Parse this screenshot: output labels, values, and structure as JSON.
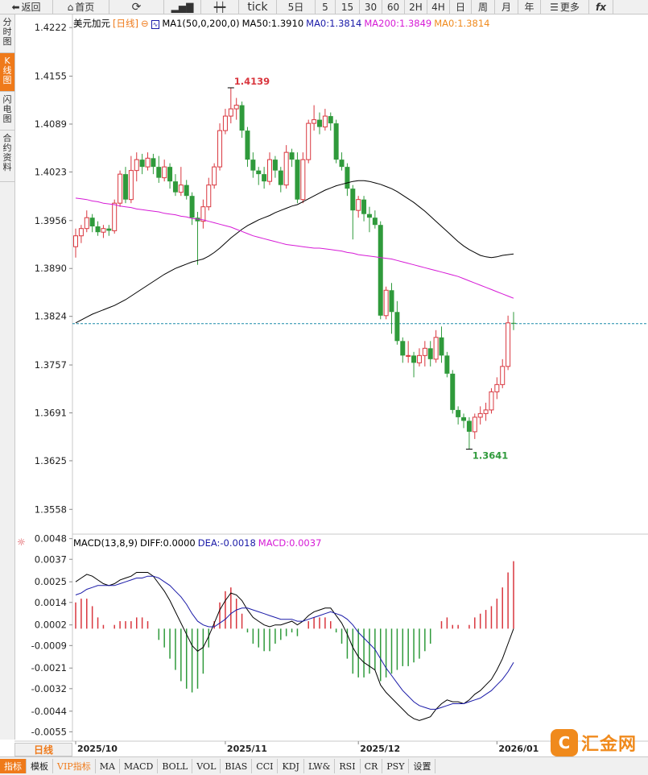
{
  "toolbar": {
    "back_label": "返回",
    "home_label": "首页",
    "tick_label": "tick",
    "periods": [
      "5日",
      "5",
      "15",
      "30",
      "60",
      "2H",
      "4H",
      "日",
      "周",
      "月",
      "年"
    ],
    "more_label": "更多",
    "fx_label": "fx"
  },
  "sidebar": {
    "tabs": [
      {
        "label": "分时图",
        "active": false
      },
      {
        "label": "K线图",
        "active": true
      },
      {
        "label": "闪电图",
        "active": false
      },
      {
        "label": "合约资料",
        "active": false
      }
    ]
  },
  "main_legend": {
    "symbol": "美元加元",
    "period_tag": "[日线]",
    "ma_setting": "MA1(50,0,200,0)",
    "ma50": "MA50:1.3910",
    "ma0a": "MA0:1.3814",
    "ma200": "MA200:1.3849",
    "ma0b": "MA0:1.3814"
  },
  "macd_legend": {
    "title": "MACD(13,8,9)",
    "diff": "DIFF:0.0000",
    "dea": "DEA:-0.0018",
    "macd": "MACD:0.0037"
  },
  "colors": {
    "up": "#d9363e",
    "down": "#2f9a3b",
    "ma50": "#000000",
    "ma200": "#d61ad6",
    "dea": "#1a1aa8",
    "macd_label": "#d61ad6",
    "ma0": "#f08a1c",
    "accent": "#ef7a1a",
    "current_line": "#1a8aa8"
  },
  "price_axis_labels": [
    "1.4222",
    "1.4155",
    "1.4089",
    "1.4023",
    "1.3956",
    "1.3890",
    "1.3824",
    "1.3757",
    "1.3691",
    "1.3625",
    "1.3558"
  ],
  "macd_axis_labels": [
    "0.0048",
    "0.0037",
    "0.0025",
    "0.0014",
    "0.0002",
    "-0.0009",
    "-0.0021",
    "-0.0032",
    "-0.0044",
    "-0.0055"
  ],
  "date_labels": [
    "2025/10",
    "2025/11",
    "2025/12",
    "2026/01"
  ],
  "annotations": {
    "high": "1.4139",
    "low": "1.3641"
  },
  "period_badge": "日线",
  "bottom_tabs": [
    "指标",
    "模板",
    "VIP指标",
    "MA",
    "MACD",
    "BOLL",
    "VOL",
    "BIAS",
    "CCI",
    "KDJ",
    "LW&",
    "RSI",
    "CR",
    "PSY",
    "设置"
  ],
  "watermark": {
    "logo_char": "C",
    "text": "汇金网"
  },
  "chart_data": {
    "type": "candlestick",
    "price_range": [
      1.3525,
      1.424
    ],
    "macd_range": [
      -0.006,
      0.005
    ],
    "current_price": 1.3814,
    "high_marker": 1.4139,
    "low_marker": 1.3641,
    "candles": [
      [
        1.392,
        1.3935,
        1.3905,
        1.3945
      ],
      [
        1.3935,
        1.3945,
        1.3925,
        1.395
      ],
      [
        1.3945,
        1.396,
        1.394,
        1.397
      ],
      [
        1.396,
        1.3948,
        1.394,
        1.3965
      ],
      [
        1.3948,
        1.394,
        1.3935,
        1.3955
      ],
      [
        1.394,
        1.3945,
        1.3932,
        1.395
      ],
      [
        1.3945,
        1.3942,
        1.3935,
        1.395
      ],
      [
        1.3942,
        1.398,
        1.3938,
        1.3985
      ],
      [
        1.398,
        1.402,
        1.3975,
        1.4025
      ],
      [
        1.402,
        1.3985,
        1.398,
        1.403
      ],
      [
        1.3985,
        1.4025,
        1.398,
        1.4045
      ],
      [
        1.4025,
        1.404,
        1.401,
        1.405
      ],
      [
        1.404,
        1.403,
        1.402,
        1.4048
      ],
      [
        1.403,
        1.4042,
        1.4025,
        1.405
      ],
      [
        1.4042,
        1.403,
        1.402,
        1.4048
      ],
      [
        1.403,
        1.4015,
        1.4008,
        1.4045
      ],
      [
        1.4015,
        1.403,
        1.401,
        1.404
      ],
      [
        1.403,
        1.401,
        1.4,
        1.4035
      ],
      [
        1.401,
        1.3995,
        1.399,
        1.402
      ],
      [
        1.3995,
        1.4005,
        1.399,
        1.403
      ],
      [
        1.4005,
        1.399,
        1.3985,
        1.4012
      ],
      [
        1.399,
        1.396,
        1.395,
        1.3995
      ],
      [
        1.396,
        1.3955,
        1.3895,
        1.3968
      ],
      [
        1.3955,
        1.3975,
        1.3945,
        1.3985
      ],
      [
        1.3975,
        1.4005,
        1.397,
        1.4015
      ],
      [
        1.4005,
        1.403,
        1.4,
        1.4035
      ],
      [
        1.403,
        1.408,
        1.4025,
        1.409
      ],
      [
        1.408,
        1.41,
        1.4075,
        1.411
      ],
      [
        1.41,
        1.411,
        1.409,
        1.4139
      ],
      [
        1.411,
        1.4115,
        1.4095,
        1.4125
      ],
      [
        1.4115,
        1.408,
        1.407,
        1.412
      ],
      [
        1.408,
        1.404,
        1.403,
        1.4085
      ],
      [
        1.404,
        1.4025,
        1.4015,
        1.405
      ],
      [
        1.4025,
        1.402,
        1.4005,
        1.403
      ],
      [
        1.402,
        1.401,
        1.4,
        1.403
      ],
      [
        1.401,
        1.404,
        1.4005,
        1.405
      ],
      [
        1.404,
        1.4025,
        1.4015,
        1.4045
      ],
      [
        1.4025,
        1.4005,
        1.3995,
        1.403
      ],
      [
        1.4005,
        1.405,
        1.4,
        1.406
      ],
      [
        1.405,
        1.404,
        1.403,
        1.4055
      ],
      [
        1.404,
        1.3985,
        1.398,
        1.405
      ],
      [
        1.3985,
        1.404,
        1.398,
        1.405
      ],
      [
        1.404,
        1.409,
        1.4035,
        1.4095
      ],
      [
        1.409,
        1.4095,
        1.408,
        1.4115
      ],
      [
        1.4095,
        1.4085,
        1.4075,
        1.4105
      ],
      [
        1.4085,
        1.41,
        1.408,
        1.411
      ],
      [
        1.41,
        1.409,
        1.408,
        1.4105
      ],
      [
        1.409,
        1.404,
        1.4035,
        1.4095
      ],
      [
        1.404,
        1.403,
        1.4025,
        1.405
      ],
      [
        1.403,
        1.4,
        1.399,
        1.4035
      ],
      [
        1.4,
        1.397,
        1.393,
        1.4005
      ],
      [
        1.397,
        1.3985,
        1.396,
        1.399
      ],
      [
        1.3985,
        1.3965,
        1.3955,
        1.399
      ],
      [
        1.3965,
        1.396,
        1.394,
        1.3975
      ],
      [
        1.396,
        1.395,
        1.3945,
        1.397
      ],
      [
        1.395,
        1.3825,
        1.382,
        1.3955
      ],
      [
        1.3825,
        1.386,
        1.382,
        1.3865
      ],
      [
        1.386,
        1.383,
        1.38,
        1.387
      ],
      [
        1.383,
        1.379,
        1.3785,
        1.3845
      ],
      [
        1.379,
        1.377,
        1.376,
        1.3795
      ],
      [
        1.377,
        1.377,
        1.376,
        1.379
      ],
      [
        1.377,
        1.376,
        1.374,
        1.3775
      ],
      [
        1.376,
        1.377,
        1.3755,
        1.378
      ],
      [
        1.377,
        1.378,
        1.3755,
        1.379
      ],
      [
        1.378,
        1.3765,
        1.3755,
        1.379
      ],
      [
        1.3765,
        1.3795,
        1.376,
        1.3805
      ],
      [
        1.3795,
        1.377,
        1.376,
        1.381
      ],
      [
        1.377,
        1.3745,
        1.374,
        1.3775
      ],
      [
        1.3745,
        1.3695,
        1.369,
        1.375
      ],
      [
        1.3695,
        1.3685,
        1.3675,
        1.37
      ],
      [
        1.3685,
        1.368,
        1.367,
        1.369
      ],
      [
        1.368,
        1.3665,
        1.3641,
        1.3685
      ],
      [
        1.3665,
        1.3685,
        1.3655,
        1.369
      ],
      [
        1.3685,
        1.369,
        1.3675,
        1.37
      ],
      [
        1.369,
        1.3695,
        1.368,
        1.3705
      ],
      [
        1.3695,
        1.372,
        1.369,
        1.3725
      ],
      [
        1.372,
        1.373,
        1.371,
        1.374
      ],
      [
        1.373,
        1.3755,
        1.3725,
        1.3765
      ],
      [
        1.3755,
        1.3815,
        1.375,
        1.3825
      ],
      [
        1.3815,
        1.3814,
        1.3805,
        1.383
      ]
    ],
    "ma50": [
      1.3815,
      1.3819,
      1.3823,
      1.3827,
      1.383,
      1.3833,
      1.3836,
      1.3839,
      1.3843,
      1.3847,
      1.3852,
      1.3857,
      1.3862,
      1.3867,
      1.3872,
      1.3877,
      1.3882,
      1.3886,
      1.389,
      1.3893,
      1.3896,
      1.3899,
      1.3901,
      1.3903,
      1.3907,
      1.3912,
      1.3918,
      1.3925,
      1.3932,
      1.3938,
      1.3944,
      1.3949,
      1.3953,
      1.3957,
      1.396,
      1.3963,
      1.3967,
      1.397,
      1.3973,
      1.3976,
      1.3978,
      1.3982,
      1.3986,
      1.399,
      1.3994,
      1.3998,
      1.4001,
      1.4004,
      1.4006,
      1.4008,
      1.401,
      1.4011,
      1.4011,
      1.401,
      1.4008,
      1.4006,
      1.4003,
      1.4,
      1.3996,
      1.3991,
      1.3986,
      1.3981,
      1.3975,
      1.3969,
      1.3962,
      1.3955,
      1.3948,
      1.3941,
      1.3934,
      1.3927,
      1.3921,
      1.3916,
      1.3912,
      1.3908,
      1.3906,
      1.3905,
      1.3906,
      1.3908,
      1.3909,
      1.391
    ],
    "ma200": [
      1.3987,
      1.3986,
      1.3985,
      1.3983,
      1.3982,
      1.398,
      1.3979,
      1.3978,
      1.3976,
      1.3975,
      1.3974,
      1.3972,
      1.3971,
      1.397,
      1.3969,
      1.3968,
      1.3966,
      1.3965,
      1.3964,
      1.3962,
      1.3961,
      1.3959,
      1.3958,
      1.3957,
      1.3955,
      1.3953,
      1.3951,
      1.3949,
      1.3947,
      1.3944,
      1.3941,
      1.3938,
      1.3935,
      1.3933,
      1.3931,
      1.3929,
      1.3927,
      1.3925,
      1.3923,
      1.3922,
      1.3921,
      1.392,
      1.3919,
      1.3918,
      1.3918,
      1.3917,
      1.3916,
      1.3915,
      1.3914,
      1.3912,
      1.3911,
      1.3909,
      1.3908,
      1.3907,
      1.3906,
      1.3905,
      1.3904,
      1.3903,
      1.3901,
      1.3899,
      1.3897,
      1.3895,
      1.3893,
      1.3891,
      1.3889,
      1.3887,
      1.3885,
      1.3883,
      1.3881,
      1.3879,
      1.3876,
      1.3873,
      1.387,
      1.3867,
      1.3864,
      1.3861,
      1.3858,
      1.3855,
      1.3852,
      1.3849
    ],
    "macd_diff": [
      0.0025,
      0.0027,
      0.0029,
      0.0028,
      0.0026,
      0.0024,
      0.0023,
      0.0024,
      0.0026,
      0.0027,
      0.0028,
      0.003,
      0.003,
      0.003,
      0.0028,
      0.0024,
      0.002,
      0.0015,
      0.0009,
      0.0003,
      -0.0003,
      -0.0009,
      -0.0012,
      -0.001,
      -0.0004,
      0.0003,
      0.001,
      0.0015,
      0.0019,
      0.0018,
      0.0015,
      0.001,
      0.0006,
      0.0004,
      0.0002,
      0.0001,
      0.0002,
      0.0002,
      0.0003,
      0.0004,
      0.0002,
      0.0004,
      0.0007,
      0.0009,
      0.001,
      0.0011,
      0.0011,
      0.0007,
      0.0003,
      -0.0003,
      -0.001,
      -0.0015,
      -0.0018,
      -0.002,
      -0.0022,
      -0.003,
      -0.0034,
      -0.0037,
      -0.004,
      -0.0043,
      -0.0046,
      -0.0048,
      -0.0049,
      -0.0048,
      -0.0047,
      -0.0043,
      -0.004,
      -0.0038,
      -0.0039,
      -0.0039,
      -0.004,
      -0.0038,
      -0.0035,
      -0.0033,
      -0.003,
      -0.0027,
      -0.0022,
      -0.0016,
      -0.0008,
      0.0
    ],
    "macd_dea": [
      0.0018,
      0.0019,
      0.0021,
      0.0022,
      0.0023,
      0.0023,
      0.0023,
      0.0023,
      0.0024,
      0.0025,
      0.0026,
      0.0027,
      0.0027,
      0.0028,
      0.0028,
      0.0027,
      0.0025,
      0.0023,
      0.002,
      0.0017,
      0.0013,
      0.0008,
      0.0004,
      0.0002,
      0.0001,
      0.0001,
      0.0003,
      0.0005,
      0.0008,
      0.001,
      0.0011,
      0.0011,
      0.001,
      0.0009,
      0.0008,
      0.0007,
      0.0006,
      0.0005,
      0.0005,
      0.0005,
      0.0004,
      0.0004,
      0.0005,
      0.0006,
      0.0007,
      0.0008,
      0.0009,
      0.0008,
      0.0007,
      0.0005,
      0.0002,
      -0.0002,
      -0.0005,
      -0.0008,
      -0.0011,
      -0.0016,
      -0.0021,
      -0.0025,
      -0.0029,
      -0.0033,
      -0.0036,
      -0.0039,
      -0.0041,
      -0.0042,
      -0.0043,
      -0.0043,
      -0.0042,
      -0.0041,
      -0.004,
      -0.004,
      -0.004,
      -0.0039,
      -0.0038,
      -0.0037,
      -0.0035,
      -0.0033,
      -0.003,
      -0.0027,
      -0.0023,
      -0.0018
    ]
  }
}
